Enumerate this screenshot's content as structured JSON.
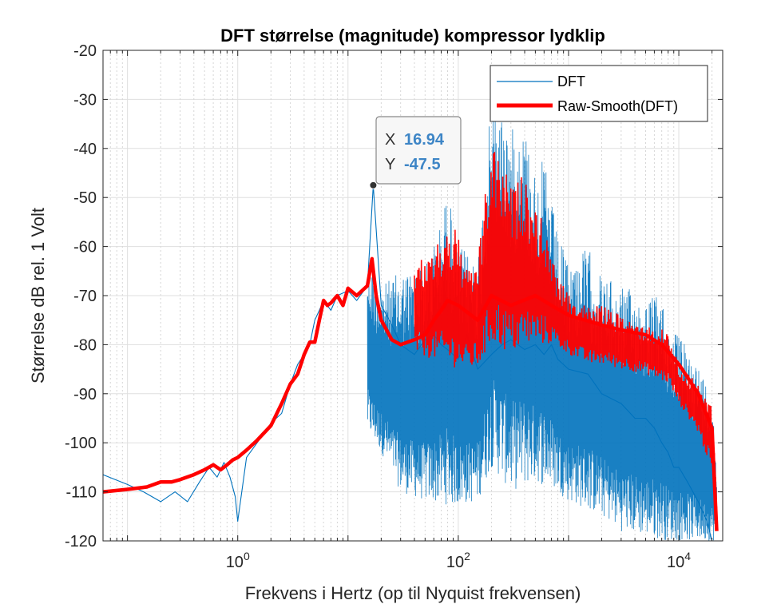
{
  "chart_data": {
    "type": "line",
    "title": "DFT størrelse (magnitude) kompressor lydklip",
    "xlabel": "Frekvens i Hertz (op til Nyquist frekvensen)",
    "ylabel": "Størrelse dB rel. 1 Volt",
    "xscale": "log",
    "xlim": [
      0.06,
      25000
    ],
    "ylim": [
      -120,
      -20
    ],
    "y_ticks": [
      -20,
      -30,
      -40,
      -50,
      -60,
      -70,
      -80,
      -90,
      -100,
      -110,
      -120
    ],
    "x_ticks": [
      {
        "value": 1,
        "base": "10",
        "exp": "0"
      },
      {
        "value": 100,
        "base": "10",
        "exp": "2"
      },
      {
        "value": 10000,
        "base": "10",
        "exp": "4"
      }
    ],
    "grid": true,
    "legend_position": "top-right",
    "series": [
      {
        "name": "DFT",
        "color": "#0072bd",
        "style": "thin",
        "x": [
          0.06,
          0.1,
          0.14,
          0.2,
          0.27,
          0.35,
          0.45,
          0.55,
          0.65,
          0.75,
          0.85,
          0.95,
          1.0,
          1.2,
          1.5,
          2.0,
          2.5,
          3.0,
          3.5,
          4.0,
          4.5,
          5.0,
          5.5,
          6.0,
          7.0,
          8.0,
          10,
          12,
          15,
          16.94,
          20,
          25,
          30,
          40,
          50,
          60,
          70,
          80,
          100,
          120,
          150,
          200,
          250,
          300,
          400,
          500,
          600,
          700,
          800,
          1000,
          1500,
          2000,
          3000,
          4000,
          5000,
          6000,
          7000,
          8000,
          9000,
          10000,
          12000,
          15000,
          18000,
          20000,
          22050
        ],
        "y": [
          -106.5,
          -108.5,
          -110,
          -112,
          -110,
          -112,
          -108,
          -105,
          -107,
          -104,
          -107,
          -111,
          -116,
          -103,
          -100,
          -96,
          -94,
          -88,
          -84,
          -82,
          -80,
          -75,
          -73,
          -71,
          -73,
          -70,
          -69,
          -71,
          -68,
          -47.5,
          -72,
          -76,
          -80,
          -82,
          -79,
          -78,
          -80,
          -81,
          -83,
          -78,
          -85,
          -82,
          -80,
          -79,
          -81,
          -80,
          -82,
          -80,
          -83,
          -85,
          -86,
          -90,
          -92,
          -95,
          -95,
          -97,
          -100,
          -102,
          -105,
          -105,
          -108,
          -112,
          -116,
          -120,
          -125
        ],
        "upper_x": [
          15,
          20,
          30,
          50,
          70,
          80,
          100,
          150,
          200,
          250,
          300,
          400,
          500,
          600,
          800,
          1000,
          1500,
          2000,
          3000,
          5000,
          7000,
          8000,
          10000,
          15000,
          20000,
          22050
        ],
        "upper_y": [
          -62,
          -68,
          -65,
          -64,
          -55,
          -48,
          -60,
          -62,
          -30,
          -32,
          -36,
          -35,
          -45,
          -42,
          -58,
          -63,
          -60,
          -66,
          -68,
          -70,
          -70,
          -76,
          -78,
          -84,
          -90,
          -105
        ],
        "lower_x": [
          5,
          10,
          20,
          30,
          50,
          100,
          150,
          200,
          300,
          500,
          800,
          1000,
          2000,
          3000,
          5000,
          8000,
          10000,
          15000,
          20000,
          22050
        ],
        "lower_y": [
          -88,
          -92,
          -102,
          -110,
          -112,
          -113,
          -112,
          -105,
          -110,
          -108,
          -110,
          -112,
          -115,
          -118,
          -119,
          -120,
          -120,
          -120,
          -120,
          -120
        ]
      },
      {
        "name": "Raw-Smooth(DFT)",
        "color": "#ff0000",
        "style": "thick",
        "x": [
          0.06,
          0.1,
          0.15,
          0.2,
          0.25,
          0.3,
          0.4,
          0.5,
          0.6,
          0.7,
          0.8,
          0.9,
          1.0,
          1.2,
          1.5,
          2.0,
          2.5,
          3.0,
          3.5,
          4.0,
          4.5,
          5.0,
          5.5,
          6.0,
          6.5,
          7.0,
          8.0,
          9.0,
          10,
          12,
          15,
          16.5,
          18,
          20,
          25,
          30,
          40,
          50,
          60,
          70,
          80,
          100,
          150,
          200,
          300,
          500,
          700,
          1000,
          2000,
          3000,
          5000,
          7000,
          10000,
          15000,
          20000,
          22050
        ],
        "y": [
          -110,
          -109.5,
          -109,
          -108,
          -108,
          -107.5,
          -106.5,
          -105.5,
          -104.5,
          -105.5,
          -104.5,
          -103.5,
          -103,
          -101.5,
          -99.5,
          -96.5,
          -92,
          -88,
          -86,
          -82,
          -79.5,
          -79.5,
          -75,
          -71,
          -72,
          -71.5,
          -70,
          -72,
          -68.5,
          -70,
          -68,
          -62.5,
          -70,
          -75,
          -79,
          -80,
          -79,
          -78,
          -75,
          -73,
          -71,
          -72,
          -75,
          -70,
          -72,
          -70,
          -72,
          -74,
          -76,
          -77,
          -78,
          -80,
          -84,
          -90,
          -97,
          -118
        ],
        "upper_x": [
          40,
          60,
          70,
          80,
          100,
          120,
          150,
          200,
          250,
          300,
          400,
          500,
          600,
          700,
          800,
          1000,
          1500,
          2000,
          3000,
          5000,
          8000,
          10000,
          15000,
          20000,
          22050
        ],
        "upper_y": [
          -64,
          -60,
          -58,
          -55,
          -57,
          -65,
          -62,
          -39,
          -42,
          -48,
          -45,
          -52,
          -55,
          -62,
          -66,
          -70,
          -72,
          -72,
          -74,
          -76,
          -77,
          -84,
          -88,
          -92,
          -110
        ],
        "lower_x": [
          40,
          60,
          80,
          100,
          150,
          200,
          300,
          500,
          700,
          1000,
          1500,
          2000,
          3000,
          5000,
          8000,
          10000,
          15000,
          20000,
          22050
        ],
        "lower_y": [
          -82,
          -83,
          -84,
          -85,
          -85,
          -80,
          -82,
          -80,
          -80,
          -82,
          -84,
          -84,
          -85,
          -86,
          -88,
          -92,
          -98,
          -106,
          -119
        ]
      }
    ],
    "datatip": {
      "x_label": "X",
      "x_value": "16.94",
      "y_label": "Y",
      "y_value": "-47.5",
      "point_x": 16.94,
      "point_y": -47.5
    }
  }
}
